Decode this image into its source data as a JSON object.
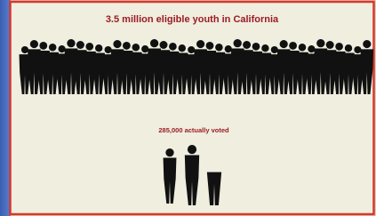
{
  "slide": {
    "headline": "3.5 million eligible youth in California",
    "caption": "285,000 actually voted"
  }
}
